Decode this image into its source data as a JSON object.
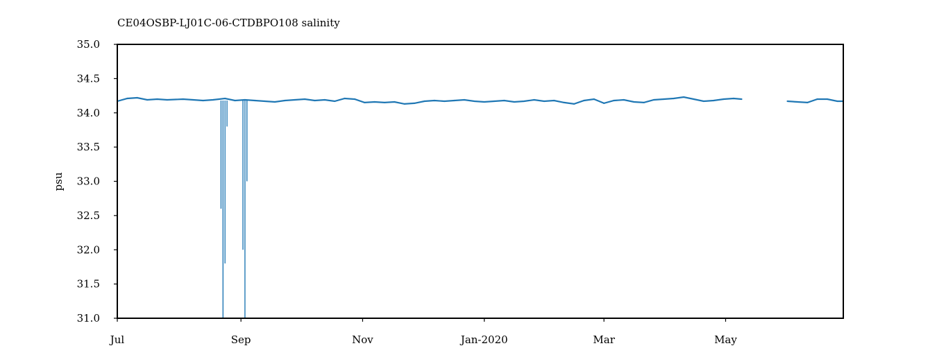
{
  "chart_data": {
    "type": "scatter",
    "title": "CE04OSBP-LJ01C-06-CTDBPO108 salinity",
    "xlabel": "",
    "ylabel": "psu",
    "ylim": [
      31.0,
      35.0
    ],
    "xlim": [
      "2019-07-01",
      "2020-06-29"
    ],
    "yticks": [
      31.0,
      31.5,
      32.0,
      32.5,
      33.0,
      33.5,
      34.0,
      34.5,
      35.0
    ],
    "yticklabels": [
      "31.0",
      "31.5",
      "32.0",
      "32.5",
      "33.0",
      "33.5",
      "34.0",
      "34.5",
      "35.0"
    ],
    "xticks": [
      "2019-07-01",
      "2019-09-01",
      "2019-11-01",
      "2020-01-01",
      "2020-03-01",
      "2020-05-01"
    ],
    "xticklabels": [
      "Jul",
      "Sep",
      "Nov",
      "Jan-2020",
      "Mar",
      "May"
    ],
    "grid": false,
    "color": "#1f77b4",
    "series": [
      {
        "x": [
          "2019-07-01",
          "2019-07-06",
          "2019-07-11",
          "2019-07-16",
          "2019-07-21",
          "2019-07-26",
          "2019-08-03",
          "2019-08-08",
          "2019-08-13",
          "2019-08-18",
          "2019-08-24",
          "2019-08-29",
          "2019-09-03",
          "2019-09-08",
          "2019-09-13",
          "2019-09-18",
          "2019-09-23",
          "2019-09-28",
          "2019-10-03",
          "2019-10-08",
          "2019-10-13",
          "2019-10-18",
          "2019-10-23",
          "2019-10-28",
          "2019-11-02",
          "2019-11-07",
          "2019-11-12",
          "2019-11-17",
          "2019-11-22",
          "2019-11-27",
          "2019-12-02",
          "2019-12-07",
          "2019-12-12",
          "2019-12-17",
          "2019-12-22",
          "2019-12-27",
          "2020-01-01",
          "2020-01-06",
          "2020-01-11",
          "2020-01-16",
          "2020-01-21",
          "2020-01-26",
          "2020-01-31",
          "2020-02-05",
          "2020-02-10",
          "2020-02-15",
          "2020-02-20",
          "2020-02-25",
          "2020-03-01",
          "2020-03-06",
          "2020-03-11",
          "2020-03-16",
          "2020-03-21",
          "2020-03-26",
          "2020-03-31",
          "2020-04-05",
          "2020-04-10",
          "2020-04-15",
          "2020-04-20",
          "2020-04-25",
          "2020-04-30",
          "2020-05-05",
          "2020-05-09",
          "2020-06-01",
          "2020-06-06",
          "2020-06-11",
          "2020-06-16",
          "2020-06-21",
          "2020-06-26",
          "2020-06-29"
        ],
        "y": [
          34.17,
          34.21,
          34.22,
          34.19,
          34.2,
          34.19,
          34.2,
          34.19,
          34.18,
          34.19,
          34.21,
          34.18,
          34.19,
          34.18,
          34.17,
          34.16,
          34.18,
          34.19,
          34.2,
          34.18,
          34.19,
          34.17,
          34.21,
          34.2,
          34.15,
          34.16,
          34.15,
          34.16,
          34.13,
          34.14,
          34.17,
          34.18,
          34.17,
          34.18,
          34.19,
          34.17,
          34.16,
          34.17,
          34.18,
          34.16,
          34.17,
          34.19,
          34.17,
          34.18,
          34.15,
          34.13,
          34.18,
          34.2,
          34.14,
          34.18,
          34.19,
          34.16,
          34.15,
          34.19,
          34.2,
          34.21,
          34.23,
          34.2,
          34.17,
          34.18,
          34.2,
          34.21,
          34.2,
          34.17,
          34.16,
          34.15,
          34.2,
          34.2,
          34.17,
          34.17
        ]
      },
      {
        "x": [
          "2019-08-22",
          "2019-08-23",
          "2019-08-24",
          "2019-08-25",
          "2019-09-02",
          "2019-09-03",
          "2019-09-04"
        ],
        "y": [
          32.6,
          31.0,
          31.8,
          33.8,
          32.0,
          31.0,
          33.0
        ]
      }
    ]
  }
}
